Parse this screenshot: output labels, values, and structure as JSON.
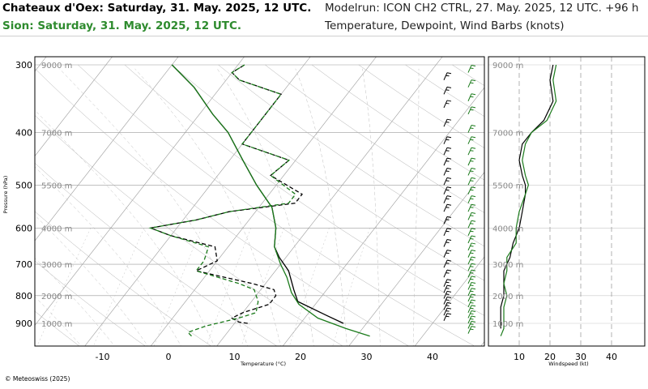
{
  "header": {
    "station_line": "Chateaux d'Oex: Saturday, 31. May. 2025, 12 UTC.",
    "sion_line": "Sion: Saturday, 31. May. 2025, 12 UTC.",
    "model_line": "Modelrun: ICON CH2 CTRL, 27. May. 2025, 12 UTC. +96 h",
    "params_line": "Temperature, Dewpoint, Wind Barbs (knots)"
  },
  "footer": {
    "copyright": "© Meteoswiss (2025)"
  },
  "colors": {
    "station": "#000000",
    "sion": "#1a7a1a",
    "grid": "#9a9a9a"
  },
  "chart_data": [
    {
      "type": "skew-t",
      "xlabel": "Temperature (°C)",
      "ylabel": "Pressure (hPa)",
      "pressure_ticks": [
        {
          "p": 300,
          "label": "300"
        },
        {
          "p": 400,
          "label": "400"
        },
        {
          "p": 500,
          "label": "500"
        },
        {
          "p": 600,
          "label": "600"
        },
        {
          "p": 700,
          "label": "700"
        },
        {
          "p": 800,
          "label": "800"
        },
        {
          "p": 900,
          "label": "900"
        }
      ],
      "temp_ticks": [
        {
          "t": -10,
          "label": "-10"
        },
        {
          "t": 0,
          "label": "0"
        },
        {
          "t": 10,
          "label": "10"
        },
        {
          "t": 20,
          "label": "20"
        },
        {
          "t": 30,
          "label": "30"
        },
        {
          "t": 40,
          "label": "40"
        }
      ],
      "height_labels": [
        {
          "p": 300,
          "label": "9000 m"
        },
        {
          "p": 400,
          "label": "7000 m"
        },
        {
          "p": 500,
          "label": "5500 m"
        },
        {
          "p": 600,
          "label": "4000 m"
        },
        {
          "p": 700,
          "label": "3000 m"
        },
        {
          "p": 800,
          "label": "2000 m"
        },
        {
          "p": 900,
          "label": "1000 m"
        }
      ],
      "series": [
        {
          "name": "Chateaux d'Oex temperature",
          "points": [
            [
              900,
              26.5
            ],
            [
              870,
              23
            ],
            [
              820,
              17
            ],
            [
              780,
              15
            ],
            [
              720,
              12
            ],
            [
              680,
              9
            ],
            [
              650,
              7
            ],
            [
              600,
              5
            ],
            [
              550,
              2
            ],
            [
              500,
              -3
            ],
            [
              450,
              -8
            ],
            [
              400,
              -13.5
            ],
            [
              370,
              -18
            ],
            [
              330,
              -24
            ],
            [
              300,
              -30
            ]
          ]
        },
        {
          "name": "Chateaux d'Oex dewpoint",
          "points": [
            [
              900,
              12
            ],
            [
              895,
              10.5
            ],
            [
              880,
              9
            ],
            [
              860,
              10
            ],
            [
              830,
              13
            ],
            [
              800,
              13
            ],
            [
              780,
              12
            ],
            [
              760,
              8
            ],
            [
              720,
              -2
            ],
            [
              690,
              0
            ],
            [
              650,
              -2
            ],
            [
              620,
              -10
            ],
            [
              600,
              -14
            ],
            [
              580,
              -8
            ],
            [
              560,
              -4
            ],
            [
              540,
              5
            ],
            [
              520,
              5
            ],
            [
              480,
              -2
            ],
            [
              450,
              -1
            ],
            [
              420,
              -10
            ],
            [
              380,
              -10
            ],
            [
              340,
              -10
            ],
            [
              320,
              -18
            ],
            [
              310,
              -20
            ],
            [
              300,
              -19
            ]
          ]
        },
        {
          "name": "Sion temperature",
          "points": [
            [
              950,
              32
            ],
            [
              920,
              27.5
            ],
            [
              880,
              22
            ],
            [
              830,
              17.5
            ],
            [
              790,
              15
            ],
            [
              740,
              12.5
            ],
            [
              700,
              10
            ],
            [
              650,
              7
            ],
            [
              600,
              5
            ],
            [
              550,
              2
            ],
            [
              500,
              -3
            ],
            [
              450,
              -8
            ],
            [
              400,
              -13.5
            ],
            [
              370,
              -18
            ],
            [
              330,
              -24
            ],
            [
              300,
              -30
            ]
          ]
        },
        {
          "name": "Sion dewpoint",
          "points": [
            [
              950,
              5
            ],
            [
              935,
              4
            ],
            [
              910,
              6
            ],
            [
              880,
              10
            ],
            [
              860,
              12
            ],
            [
              820,
              11
            ],
            [
              780,
              9
            ],
            [
              760,
              6
            ],
            [
              720,
              -2
            ],
            [
              690,
              -2
            ],
            [
              650,
              -3
            ],
            [
              620,
              -10
            ],
            [
              600,
              -14
            ],
            [
              580,
              -8
            ],
            [
              560,
              -4
            ],
            [
              540,
              4
            ],
            [
              520,
              4
            ],
            [
              480,
              -2
            ],
            [
              450,
              -1
            ],
            [
              420,
              -10
            ],
            [
              380,
              -10
            ],
            [
              340,
              -10
            ],
            [
              320,
              -18
            ],
            [
              310,
              -20
            ],
            [
              300,
              -19
            ]
          ]
        }
      ],
      "wind_barbs": [
        {
          "name": "Chateaux d'Oex",
          "levels": [
            320,
            340,
            360,
            390,
            420,
            440,
            460,
            480,
            500,
            520,
            540,
            560,
            590,
            620,
            650,
            680,
            710,
            740,
            770,
            790,
            810,
            830,
            850,
            870,
            890
          ]
        },
        {
          "name": "Sion",
          "levels": [
            310,
            330,
            350,
            370,
            400,
            420,
            440,
            460,
            480,
            500,
            520,
            540,
            560,
            580,
            600,
            620,
            640,
            660,
            680,
            700,
            720,
            740,
            760,
            780,
            800,
            820,
            840,
            860,
            880,
            900,
            920,
            940
          ]
        }
      ]
    },
    {
      "type": "line",
      "xlabel": "Windspeed (kt)",
      "xticks": [
        {
          "v": 10,
          "label": "10"
        },
        {
          "v": 20,
          "label": "20"
        },
        {
          "v": 30,
          "label": "30"
        },
        {
          "v": 40,
          "label": "40"
        }
      ],
      "height_labels": [
        "9000 m",
        "7000 m",
        "5500 m",
        "4000 m",
        "3000 m",
        "2000 m",
        "1000 m"
      ],
      "series": [
        {
          "name": "Chateaux d'Oex windspeed",
          "points": [
            [
              300,
              21
            ],
            [
              320,
              20
            ],
            [
              350,
              21
            ],
            [
              380,
              18
            ],
            [
              400,
              14
            ],
            [
              420,
              11
            ],
            [
              450,
              10
            ],
            [
              480,
              11
            ],
            [
              500,
              12
            ],
            [
              520,
              12
            ],
            [
              560,
              11
            ],
            [
              600,
              10
            ],
            [
              640,
              8
            ],
            [
              680,
              7
            ],
            [
              720,
              5
            ],
            [
              760,
              5
            ],
            [
              800,
              5
            ],
            [
              840,
              4
            ],
            [
              880,
              4
            ],
            [
              900,
              4
            ],
            [
              920,
              4
            ]
          ]
        },
        {
          "name": "Sion windspeed",
          "points": [
            [
              300,
              22
            ],
            [
              320,
              21
            ],
            [
              350,
              22
            ],
            [
              380,
              19
            ],
            [
              400,
              14
            ],
            [
              420,
              12
            ],
            [
              450,
              11
            ],
            [
              480,
              12
            ],
            [
              500,
              13
            ],
            [
              520,
              12
            ],
            [
              560,
              10
            ],
            [
              600,
              9
            ],
            [
              640,
              9
            ],
            [
              680,
              6
            ],
            [
              720,
              6
            ],
            [
              760,
              5
            ],
            [
              800,
              6
            ],
            [
              840,
              5
            ],
            [
              880,
              5
            ],
            [
              920,
              5
            ],
            [
              950,
              4
            ]
          ]
        }
      ]
    }
  ]
}
